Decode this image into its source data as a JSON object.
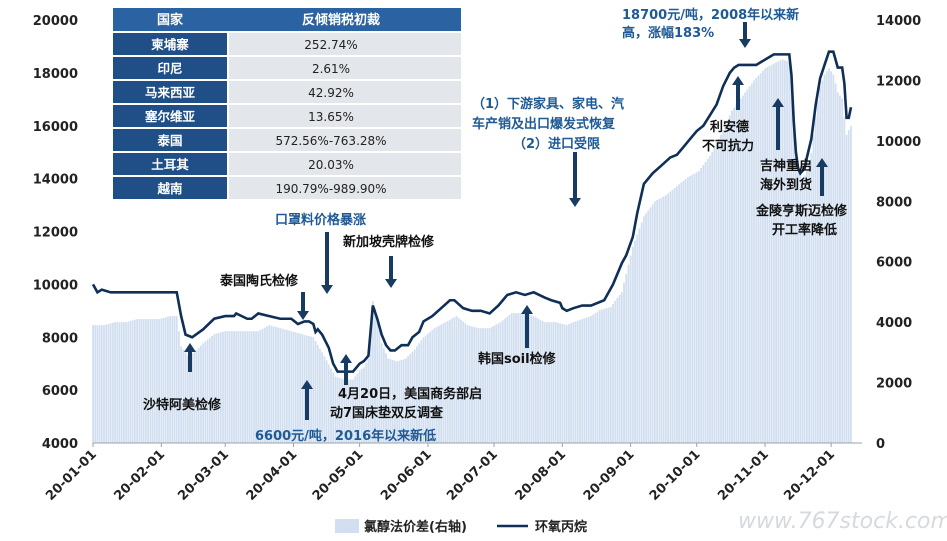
{
  "colors": {
    "line": "#0f2f57",
    "area": "#d2dff0",
    "arrow": "#173b63",
    "table_header": "#2b62a1",
    "table_country": "#1f4f86",
    "table_value_bg": "#e3e6ea",
    "blue_text": "#1f5a96"
  },
  "table": {
    "headers": [
      "国家",
      "反倾销税初裁"
    ],
    "rows": [
      {
        "country": "柬埔寨",
        "rate": "252.74%"
      },
      {
        "country": "印尼",
        "rate": "2.61%"
      },
      {
        "country": "马来西亚",
        "rate": "42.92%"
      },
      {
        "country": "塞尔维亚",
        "rate": "13.65%"
      },
      {
        "country": "泰国",
        "rate": "572.56%-763.28%"
      },
      {
        "country": "土耳其",
        "rate": "20.03%"
      },
      {
        "country": "越南",
        "rate": "190.79%-989.90%"
      }
    ]
  },
  "annotations": {
    "saudi": "沙特阿美检修",
    "thai": "泰国陶氏检修",
    "mask": "口罩料价格暴涨",
    "singapore": "新加坡壳牌检修",
    "low_line1": "6600元/吨，2016年以来新低",
    "april_line1": "4月20日，美国商务部启",
    "april_line2": "动7国床垫双反调查",
    "korea": "韩国soil检修",
    "demand_line1": "（1）下游家具、家电、汽",
    "demand_line2": "车产销及出口爆发式恢复",
    "demand_line3": "（2）进口受限",
    "high_line1": "18700元/吨，2008年以来新",
    "high_line2": "高，涨幅183%",
    "lianyide_line1": "利安德",
    "lianyide_line2": "不可抗力",
    "jishen_line1": "吉神重启",
    "jishen_line2": "海外到货",
    "jinling_line1": "金陵亨斯迈检修",
    "jinling_line2": "开工率降低"
  },
  "legend": {
    "area": "氯醇法价差(右轴)",
    "line": "环氧丙烷"
  },
  "watermark": "www.767stock.com",
  "chart_data": {
    "type": "line",
    "x_tick_labels": [
      "20-01-01",
      "20-02-01",
      "20-03-01",
      "20-04-01",
      "20-05-01",
      "20-06-01",
      "20-07-01",
      "20-08-01",
      "20-09-01",
      "20-10-01",
      "20-11-01",
      "20-12-01"
    ],
    "y_left_ticks": [
      4000,
      6000,
      8000,
      10000,
      12000,
      14000,
      16000,
      18000,
      20000
    ],
    "y_right_ticks": [
      0,
      2000,
      4000,
      6000,
      8000,
      10000,
      12000,
      14000
    ],
    "ylim_left": [
      4000,
      20000
    ],
    "ylim_right": [
      0,
      14000
    ],
    "xlim_days": [
      0,
      349
    ],
    "series": [
      {
        "name": "环氧丙烷",
        "axis": "left",
        "points": [
          [
            0,
            10000
          ],
          [
            2,
            9700
          ],
          [
            4,
            9800
          ],
          [
            8,
            9700
          ],
          [
            12,
            9700
          ],
          [
            20,
            9700
          ],
          [
            28,
            9700
          ],
          [
            33,
            9700
          ],
          [
            38,
            9700
          ],
          [
            40,
            8800
          ],
          [
            42,
            8100
          ],
          [
            45,
            8000
          ],
          [
            50,
            8300
          ],
          [
            55,
            8700
          ],
          [
            60,
            8800
          ],
          [
            64,
            8800
          ],
          [
            65,
            8900
          ],
          [
            70,
            8700
          ],
          [
            72,
            8700
          ],
          [
            75,
            8900
          ],
          [
            80,
            8800
          ],
          [
            85,
            8700
          ],
          [
            90,
            8700
          ],
          [
            93,
            8500
          ],
          [
            96,
            8600
          ],
          [
            98,
            8600
          ],
          [
            100,
            8500
          ],
          [
            101,
            8200
          ],
          [
            102,
            8300
          ],
          [
            104,
            8100
          ],
          [
            107,
            7600
          ],
          [
            109,
            7000
          ],
          [
            111,
            6700
          ],
          [
            113,
            6700
          ],
          [
            115,
            6700
          ],
          [
            118,
            6700
          ],
          [
            121,
            7000
          ],
          [
            123,
            7100
          ],
          [
            125,
            7300
          ],
          [
            127,
            9200
          ],
          [
            129,
            8700
          ],
          [
            131,
            8100
          ],
          [
            133,
            7700
          ],
          [
            135,
            7500
          ],
          [
            137,
            7500
          ],
          [
            140,
            7700
          ],
          [
            143,
            7700
          ],
          [
            145,
            8000
          ],
          [
            148,
            8200
          ],
          [
            150,
            8600
          ],
          [
            154,
            8800
          ],
          [
            158,
            9100
          ],
          [
            162,
            9400
          ],
          [
            164,
            9400
          ],
          [
            168,
            9100
          ],
          [
            172,
            9000
          ],
          [
            176,
            9000
          ],
          [
            180,
            8900
          ],
          [
            184,
            9200
          ],
          [
            186,
            9400
          ],
          [
            188,
            9600
          ],
          [
            192,
            9700
          ],
          [
            196,
            9600
          ],
          [
            200,
            9700
          ],
          [
            205,
            9500
          ],
          [
            208,
            9400
          ],
          [
            212,
            9300
          ],
          [
            213,
            9100
          ],
          [
            215,
            9000
          ],
          [
            218,
            9100
          ],
          [
            222,
            9200
          ],
          [
            226,
            9200
          ],
          [
            232,
            9400
          ],
          [
            236,
            10000
          ],
          [
            240,
            10800
          ],
          [
            242,
            11100
          ],
          [
            245,
            11800
          ],
          [
            247,
            12700
          ],
          [
            250,
            13800
          ],
          [
            254,
            14200
          ],
          [
            258,
            14500
          ],
          [
            262,
            14800
          ],
          [
            265,
            14900
          ],
          [
            268,
            15200
          ],
          [
            271,
            15500
          ],
          [
            274,
            15800
          ],
          [
            277,
            16000
          ],
          [
            280,
            16400
          ],
          [
            283,
            16800
          ],
          [
            286,
            17500
          ],
          [
            289,
            18000
          ],
          [
            291,
            18200
          ],
          [
            293,
            18300
          ],
          [
            296,
            18300
          ],
          [
            299,
            18300
          ],
          [
            300,
            18300
          ],
          [
            301,
            18300
          ],
          [
            303,
            18400
          ],
          [
            305,
            18500
          ],
          [
            307,
            18600
          ],
          [
            309,
            18700
          ],
          [
            311,
            18700
          ],
          [
            313,
            18700
          ],
          [
            314,
            18700
          ],
          [
            316,
            18700
          ],
          [
            317,
            17900
          ],
          [
            318,
            16200
          ],
          [
            319,
            15000
          ],
          [
            320,
            14400
          ],
          [
            321,
            14200
          ],
          [
            322,
            14300
          ],
          [
            323,
            14400
          ],
          [
            324,
            14800
          ],
          [
            326,
            15500
          ],
          [
            328,
            16800
          ],
          [
            330,
            17800
          ],
          [
            332,
            18300
          ],
          [
            334,
            18800
          ],
          [
            336,
            18800
          ],
          [
            338,
            18200
          ],
          [
            340,
            18200
          ],
          [
            341,
            17600
          ],
          [
            342,
            16300
          ],
          [
            343,
            16300
          ],
          [
            344,
            16700
          ]
        ]
      },
      {
        "name": "氯醇法价差(右轴)",
        "axis": "right",
        "points": [
          [
            0,
            3900
          ],
          [
            5,
            3900
          ],
          [
            10,
            4000
          ],
          [
            15,
            4000
          ],
          [
            20,
            4100
          ],
          [
            25,
            4100
          ],
          [
            30,
            4100
          ],
          [
            35,
            4200
          ],
          [
            38,
            4200
          ],
          [
            40,
            3200
          ],
          [
            43,
            2900
          ],
          [
            46,
            3000
          ],
          [
            50,
            3300
          ],
          [
            55,
            3600
          ],
          [
            60,
            3700
          ],
          [
            65,
            3700
          ],
          [
            70,
            3700
          ],
          [
            75,
            3700
          ],
          [
            80,
            3900
          ],
          [
            85,
            3800
          ],
          [
            90,
            3700
          ],
          [
            95,
            3600
          ],
          [
            100,
            3500
          ],
          [
            104,
            3000
          ],
          [
            107,
            2600
          ],
          [
            110,
            2200
          ],
          [
            114,
            2100
          ],
          [
            118,
            2100
          ],
          [
            121,
            2400
          ],
          [
            123,
            2500
          ],
          [
            125,
            2800
          ],
          [
            127,
            4700
          ],
          [
            129,
            4200
          ],
          [
            131,
            3300
          ],
          [
            134,
            2800
          ],
          [
            138,
            2700
          ],
          [
            142,
            2800
          ],
          [
            146,
            3100
          ],
          [
            150,
            3500
          ],
          [
            155,
            3800
          ],
          [
            160,
            4000
          ],
          [
            165,
            4200
          ],
          [
            170,
            3900
          ],
          [
            175,
            3800
          ],
          [
            180,
            3800
          ],
          [
            185,
            4000
          ],
          [
            190,
            4300
          ],
          [
            195,
            4300
          ],
          [
            200,
            4200
          ],
          [
            205,
            4000
          ],
          [
            210,
            4000
          ],
          [
            215,
            3900
          ],
          [
            218,
            4000
          ],
          [
            222,
            4100
          ],
          [
            226,
            4200
          ],
          [
            230,
            4400
          ],
          [
            235,
            4500
          ],
          [
            240,
            5000
          ],
          [
            245,
            6500
          ],
          [
            250,
            7500
          ],
          [
            255,
            8000
          ],
          [
            260,
            8200
          ],
          [
            265,
            8500
          ],
          [
            270,
            8800
          ],
          [
            275,
            9000
          ],
          [
            280,
            9500
          ],
          [
            285,
            10200
          ],
          [
            290,
            11000
          ],
          [
            295,
            11500
          ],
          [
            300,
            12000
          ],
          [
            305,
            12400
          ],
          [
            310,
            12600
          ],
          [
            313,
            12700
          ],
          [
            316,
            12600
          ],
          [
            318,
            11000
          ],
          [
            320,
            9000
          ],
          [
            322,
            8700
          ],
          [
            324,
            9000
          ],
          [
            326,
            9600
          ],
          [
            328,
            10800
          ],
          [
            330,
            11800
          ],
          [
            332,
            12200
          ],
          [
            334,
            12400
          ],
          [
            336,
            12200
          ],
          [
            338,
            11600
          ],
          [
            340,
            11400
          ],
          [
            342,
            10200
          ],
          [
            344,
            10500
          ]
        ]
      }
    ]
  }
}
